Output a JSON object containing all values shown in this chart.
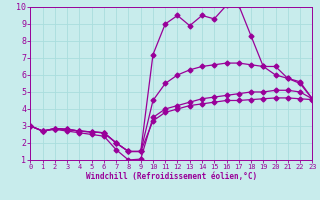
{
  "xlabel": "Windchill (Refroidissement éolien,°C)",
  "xlim": [
    0,
    23
  ],
  "ylim": [
    1,
    10
  ],
  "xticks": [
    0,
    1,
    2,
    3,
    4,
    5,
    6,
    7,
    8,
    9,
    10,
    11,
    12,
    13,
    14,
    15,
    16,
    17,
    18,
    19,
    20,
    21,
    22,
    23
  ],
  "yticks": [
    1,
    2,
    3,
    4,
    5,
    6,
    7,
    8,
    9,
    10
  ],
  "bg_color": "#c8ecec",
  "line_color": "#990099",
  "grid_color": "#aadddd",
  "line1_x": [
    0,
    1,
    2,
    3,
    4,
    5,
    6,
    7,
    8,
    9,
    10,
    11,
    12,
    13,
    14,
    15,
    16,
    17,
    18,
    19,
    20,
    21,
    22,
    23
  ],
  "line1_y": [
    3.0,
    2.7,
    2.8,
    2.7,
    2.6,
    2.5,
    2.4,
    1.6,
    1.0,
    1.05,
    3.5,
    4.0,
    4.2,
    4.4,
    4.6,
    4.7,
    4.8,
    4.9,
    5.0,
    5.0,
    5.1,
    5.1,
    5.0,
    4.6
  ],
  "line2_x": [
    0,
    1,
    2,
    3,
    4,
    5,
    6,
    7,
    8,
    9,
    10,
    11,
    12,
    13,
    14,
    15,
    16,
    17,
    18,
    19,
    20,
    21,
    22,
    23
  ],
  "line2_y": [
    3.0,
    2.7,
    2.85,
    2.8,
    2.7,
    2.65,
    2.6,
    2.0,
    1.5,
    1.5,
    3.3,
    3.8,
    4.0,
    4.2,
    4.3,
    4.4,
    4.5,
    4.5,
    4.55,
    4.6,
    4.65,
    4.65,
    4.6,
    4.55
  ],
  "line3_x": [
    0,
    1,
    2,
    3,
    4,
    5,
    6,
    7,
    8,
    9,
    10,
    11,
    12,
    13,
    14,
    15,
    16,
    17,
    18,
    19,
    20,
    21,
    22,
    23
  ],
  "line3_y": [
    3.0,
    2.7,
    2.85,
    2.8,
    2.7,
    2.65,
    2.6,
    2.0,
    1.5,
    1.5,
    4.5,
    5.5,
    6.0,
    6.3,
    6.5,
    6.6,
    6.7,
    6.7,
    6.6,
    6.5,
    6.5,
    5.8,
    5.6,
    4.6
  ],
  "line4_x": [
    0,
    1,
    2,
    3,
    4,
    5,
    6,
    7,
    8,
    9,
    10,
    11,
    12,
    13,
    14,
    15,
    16,
    17,
    18,
    19,
    20,
    21,
    22,
    23
  ],
  "line4_y": [
    3.0,
    2.7,
    2.85,
    2.8,
    2.7,
    2.65,
    2.6,
    2.0,
    1.5,
    1.5,
    7.2,
    9.0,
    9.5,
    8.9,
    9.5,
    9.3,
    10.1,
    10.1,
    8.3,
    6.5,
    6.0,
    5.8,
    5.5,
    4.6
  ],
  "marker": "D",
  "marker_size": 2.5,
  "linewidth": 0.9
}
